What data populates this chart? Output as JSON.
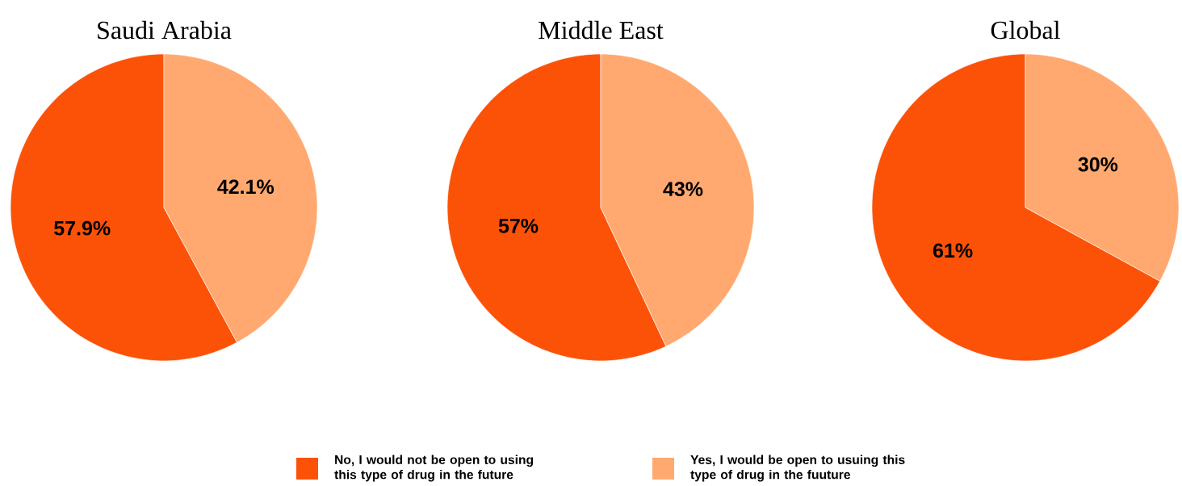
{
  "chart_data": [
    {
      "type": "pie",
      "title": "Saudi Arabia",
      "categories": [
        null,
        null
      ],
      "values": [
        57.9,
        42.1
      ],
      "value_labels": [
        "57.9%",
        "42.1%"
      ],
      "colors": [
        "#fc5208",
        "#ffa970"
      ]
    },
    {
      "type": "pie",
      "title": "Middle East",
      "categories": [
        "No, I would not be open to using this type of drug in the future",
        "Yes, I would be open to usuing this type of drug in the fuuture"
      ],
      "values": [
        57,
        43
      ],
      "value_labels": [
        "57%",
        "43%"
      ],
      "colors": [
        "#fc5208",
        "#ffa970"
      ],
      "legend": "bottom"
    },
    {
      "type": "pie",
      "title": "Global",
      "categories": [
        null,
        null
      ],
      "values": [
        61,
        30
      ],
      "value_labels": [
        "61%",
        "30%"
      ],
      "colors": [
        "#fc5208",
        "#ffa970"
      ]
    }
  ]
}
